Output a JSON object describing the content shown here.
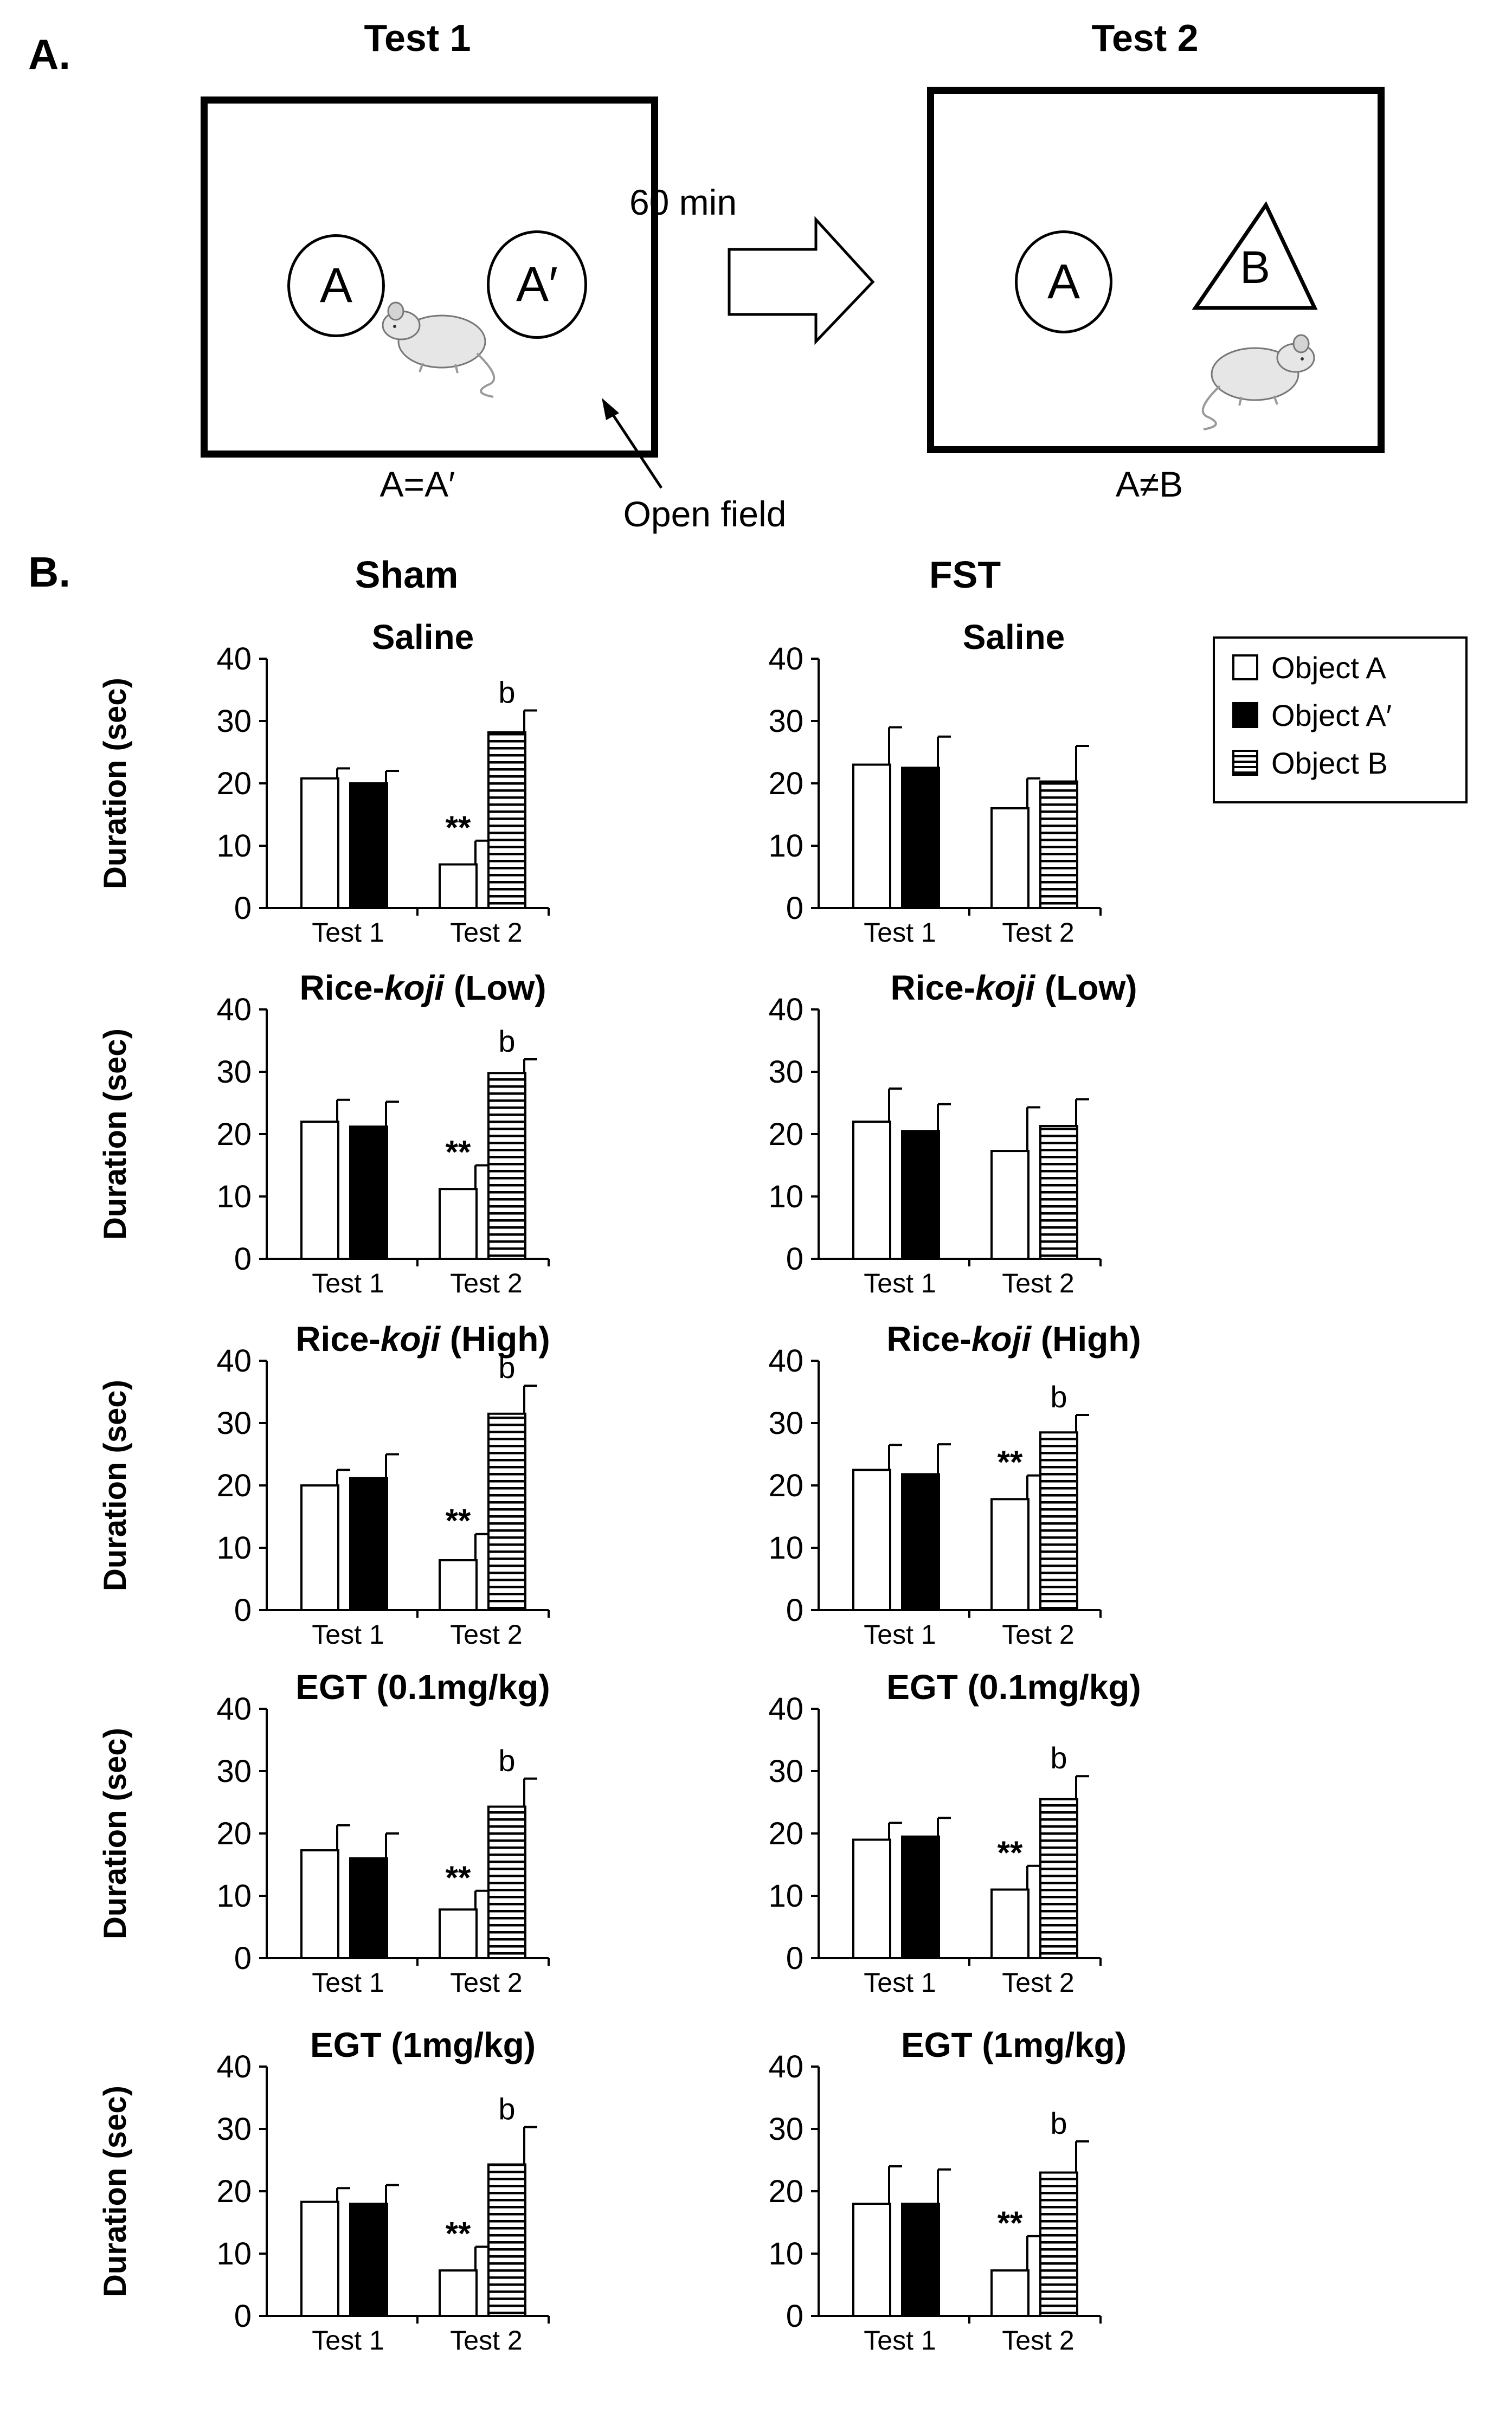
{
  "panel_a": {
    "label": "A.",
    "test1_title": "Test 1",
    "test2_title": "Test 2",
    "arrow_label": "60 min",
    "test1_objects": [
      "A",
      "A′"
    ],
    "test2_objects": [
      "A",
      "B"
    ],
    "test1_caption": "A=A′",
    "test2_caption": "A≠B",
    "open_field_label": "Open field"
  },
  "panel_b": {
    "label": "B.",
    "column_titles": [
      "Sham",
      "FST"
    ]
  },
  "legend": {
    "items": [
      {
        "label": "Object A",
        "style": "white"
      },
      {
        "label": "Object A′",
        "style": "black"
      },
      {
        "label": "Object B",
        "style": "hatched"
      }
    ]
  },
  "colors": {
    "ink": "#000000",
    "background": "#ffffff",
    "mouse": "#e6e6e6"
  },
  "chart_data": [
    {
      "type": "bar",
      "group": "Sham",
      "title": "Saline",
      "ylabel": "Duration (sec)",
      "ylim": [
        0,
        40
      ],
      "yticks": [
        0,
        10,
        20,
        30,
        40
      ],
      "categories": [
        "Test 1",
        "Test 2"
      ],
      "bars": [
        {
          "category": "Test 1",
          "series": "Object A",
          "value": 20.8,
          "error": 1.6,
          "annotation": ""
        },
        {
          "category": "Test 1",
          "series": "Object A′",
          "value": 20.0,
          "error": 2.0,
          "annotation": ""
        },
        {
          "category": "Test 2",
          "series": "Object A",
          "value": 7.0,
          "error": 3.8,
          "annotation": "**"
        },
        {
          "category": "Test 2",
          "series": "Object B",
          "value": 28.2,
          "error": 3.5,
          "annotation": "b"
        }
      ]
    },
    {
      "type": "bar",
      "group": "FST",
      "title": "Saline",
      "ylabel": "",
      "ylim": [
        0,
        40
      ],
      "yticks": [
        0,
        10,
        20,
        30,
        40
      ],
      "categories": [
        "Test 1",
        "Test 2"
      ],
      "bars": [
        {
          "category": "Test 1",
          "series": "Object A",
          "value": 23.0,
          "error": 6.0,
          "annotation": ""
        },
        {
          "category": "Test 1",
          "series": "Object A′",
          "value": 22.5,
          "error": 5.0,
          "annotation": ""
        },
        {
          "category": "Test 2",
          "series": "Object A",
          "value": 16.0,
          "error": 4.8,
          "annotation": ""
        },
        {
          "category": "Test 2",
          "series": "Object B",
          "value": 20.3,
          "error": 5.7,
          "annotation": ""
        }
      ]
    },
    {
      "type": "bar",
      "group": "Sham",
      "title_plain": "Rice-",
      "title_italic": "koji",
      "title_suffix": " (Low)",
      "ylabel": "Duration (sec)",
      "ylim": [
        0,
        40
      ],
      "yticks": [
        0,
        10,
        20,
        30,
        40
      ],
      "categories": [
        "Test 1",
        "Test 2"
      ],
      "bars": [
        {
          "category": "Test 1",
          "series": "Object A",
          "value": 22.0,
          "error": 3.5,
          "annotation": ""
        },
        {
          "category": "Test 1",
          "series": "Object A′",
          "value": 21.2,
          "error": 4.0,
          "annotation": ""
        },
        {
          "category": "Test 2",
          "series": "Object A",
          "value": 11.2,
          "error": 3.8,
          "annotation": "**"
        },
        {
          "category": "Test 2",
          "series": "Object B",
          "value": 29.8,
          "error": 2.2,
          "annotation": "b"
        }
      ]
    },
    {
      "type": "bar",
      "group": "FST",
      "title_plain": "Rice-",
      "title_italic": "koji",
      "title_suffix": " (Low)",
      "ylabel": "",
      "ylim": [
        0,
        40
      ],
      "yticks": [
        0,
        10,
        20,
        30,
        40
      ],
      "categories": [
        "Test 1",
        "Test 2"
      ],
      "bars": [
        {
          "category": "Test 1",
          "series": "Object A",
          "value": 22.0,
          "error": 5.3,
          "annotation": ""
        },
        {
          "category": "Test 1",
          "series": "Object A′",
          "value": 20.5,
          "error": 4.3,
          "annotation": ""
        },
        {
          "category": "Test 2",
          "series": "Object A",
          "value": 17.3,
          "error": 7.0,
          "annotation": ""
        },
        {
          "category": "Test 2",
          "series": "Object B",
          "value": 21.3,
          "error": 4.3,
          "annotation": ""
        }
      ]
    },
    {
      "type": "bar",
      "group": "Sham",
      "title_plain": "Rice-",
      "title_italic": "koji",
      "title_suffix": " (High)",
      "ylabel": "Duration (sec)",
      "ylim": [
        0,
        40
      ],
      "yticks": [
        0,
        10,
        20,
        30,
        40
      ],
      "categories": [
        "Test 1",
        "Test 2"
      ],
      "bars": [
        {
          "category": "Test 1",
          "series": "Object A",
          "value": 20.0,
          "error": 2.5,
          "annotation": ""
        },
        {
          "category": "Test 1",
          "series": "Object A′",
          "value": 21.2,
          "error": 3.8,
          "annotation": ""
        },
        {
          "category": "Test 2",
          "series": "Object A",
          "value": 8.0,
          "error": 4.2,
          "annotation": "**"
        },
        {
          "category": "Test 2",
          "series": "Object B",
          "value": 31.5,
          "error": 4.5,
          "annotation": "b"
        }
      ]
    },
    {
      "type": "bar",
      "group": "FST",
      "title_plain": "Rice-",
      "title_italic": "koji",
      "title_suffix": " (High)",
      "ylabel": "",
      "ylim": [
        0,
        40
      ],
      "yticks": [
        0,
        10,
        20,
        30,
        40
      ],
      "categories": [
        "Test 1",
        "Test 2"
      ],
      "bars": [
        {
          "category": "Test 1",
          "series": "Object A",
          "value": 22.5,
          "error": 4.0,
          "annotation": ""
        },
        {
          "category": "Test 1",
          "series": "Object A′",
          "value": 21.8,
          "error": 4.8,
          "annotation": ""
        },
        {
          "category": "Test 2",
          "series": "Object A",
          "value": 17.8,
          "error": 3.8,
          "annotation": "**"
        },
        {
          "category": "Test 2",
          "series": "Object B",
          "value": 28.5,
          "error": 2.8,
          "annotation": "b"
        }
      ]
    },
    {
      "type": "bar",
      "group": "Sham",
      "title": "EGT (0.1mg/kg)",
      "ylabel": "Duration (sec)",
      "ylim": [
        0,
        40
      ],
      "yticks": [
        0,
        10,
        20,
        30,
        40
      ],
      "categories": [
        "Test 1",
        "Test 2"
      ],
      "bars": [
        {
          "category": "Test 1",
          "series": "Object A",
          "value": 17.3,
          "error": 4.0,
          "annotation": ""
        },
        {
          "category": "Test 1",
          "series": "Object A′",
          "value": 16.0,
          "error": 4.0,
          "annotation": ""
        },
        {
          "category": "Test 2",
          "series": "Object A",
          "value": 7.8,
          "error": 3.0,
          "annotation": "**"
        },
        {
          "category": "Test 2",
          "series": "Object B",
          "value": 24.3,
          "error": 4.5,
          "annotation": "b"
        }
      ]
    },
    {
      "type": "bar",
      "group": "FST",
      "title": "EGT (0.1mg/kg)",
      "ylabel": "",
      "ylim": [
        0,
        40
      ],
      "yticks": [
        0,
        10,
        20,
        30,
        40
      ],
      "categories": [
        "Test 1",
        "Test 2"
      ],
      "bars": [
        {
          "category": "Test 1",
          "series": "Object A",
          "value": 19.0,
          "error": 2.7,
          "annotation": ""
        },
        {
          "category": "Test 1",
          "series": "Object A′",
          "value": 19.5,
          "error": 3.0,
          "annotation": ""
        },
        {
          "category": "Test 2",
          "series": "Object A",
          "value": 11.0,
          "error": 3.8,
          "annotation": "**"
        },
        {
          "category": "Test 2",
          "series": "Object B",
          "value": 25.5,
          "error": 3.7,
          "annotation": "b"
        }
      ]
    },
    {
      "type": "bar",
      "group": "Sham",
      "title": "EGT (1mg/kg)",
      "ylabel": "Duration (sec)",
      "ylim": [
        0,
        40
      ],
      "yticks": [
        0,
        10,
        20,
        30,
        40
      ],
      "categories": [
        "Test 1",
        "Test 2"
      ],
      "bars": [
        {
          "category": "Test 1",
          "series": "Object A",
          "value": 18.3,
          "error": 2.2,
          "annotation": ""
        },
        {
          "category": "Test 1",
          "series": "Object A′",
          "value": 18.0,
          "error": 3.0,
          "annotation": ""
        },
        {
          "category": "Test 2",
          "series": "Object A",
          "value": 7.3,
          "error": 3.8,
          "annotation": "**"
        },
        {
          "category": "Test 2",
          "series": "Object B",
          "value": 24.3,
          "error": 6.0,
          "annotation": "b"
        }
      ]
    },
    {
      "type": "bar",
      "group": "FST",
      "title": "EGT (1mg/kg)",
      "ylabel": "",
      "ylim": [
        0,
        40
      ],
      "yticks": [
        0,
        10,
        20,
        30,
        40
      ],
      "categories": [
        "Test 1",
        "Test 2"
      ],
      "bars": [
        {
          "category": "Test 1",
          "series": "Object A",
          "value": 18.0,
          "error": 6.0,
          "annotation": ""
        },
        {
          "category": "Test 1",
          "series": "Object A′",
          "value": 18.0,
          "error": 5.5,
          "annotation": ""
        },
        {
          "category": "Test 2",
          "series": "Object A",
          "value": 7.3,
          "error": 5.5,
          "annotation": "**"
        },
        {
          "category": "Test 2",
          "series": "Object B",
          "value": 23.0,
          "error": 5.0,
          "annotation": "b"
        }
      ]
    }
  ]
}
